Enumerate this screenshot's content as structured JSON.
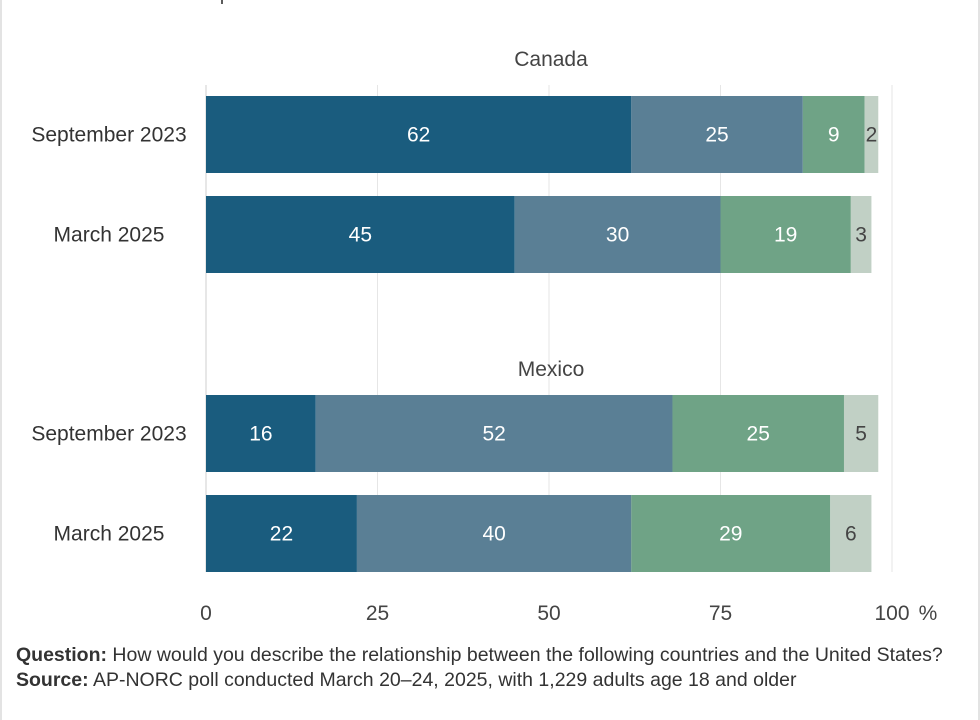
{
  "chart_data": {
    "type": "bar",
    "orientation": "horizontal",
    "stacked": true,
    "unit": "%",
    "xlim": [
      0,
      100
    ],
    "x_ticks": [
      "0",
      "25",
      "50",
      "75",
      "100"
    ],
    "grid": true,
    "colors": [
      "#1a5c7e",
      "#5a7f95",
      "#6fa386",
      "#c1d0c5"
    ],
    "label_colors": [
      "#ffffff",
      "#ffffff",
      "#ffffff",
      "#444444"
    ],
    "panels": [
      {
        "title": "Canada",
        "rows": [
          {
            "label": "September 2023",
            "values": [
              62,
              25,
              9,
              2
            ]
          },
          {
            "label": "March 2025",
            "values": [
              45,
              30,
              19,
              3
            ]
          }
        ]
      },
      {
        "title": "Mexico",
        "rows": [
          {
            "label": "September 2023",
            "values": [
              16,
              52,
              25,
              5
            ]
          },
          {
            "label": "March 2025",
            "values": [
              22,
              40,
              29,
              6
            ]
          }
        ]
      }
    ]
  },
  "footer": {
    "question_key": "Question:",
    "question_text": "How would you describe the relationship between the following countries and the United States?",
    "source_key": "Source:",
    "source_text": "AP-NORC poll conducted March 20–24, 2025, with 1,229 adults age 18 and older"
  }
}
